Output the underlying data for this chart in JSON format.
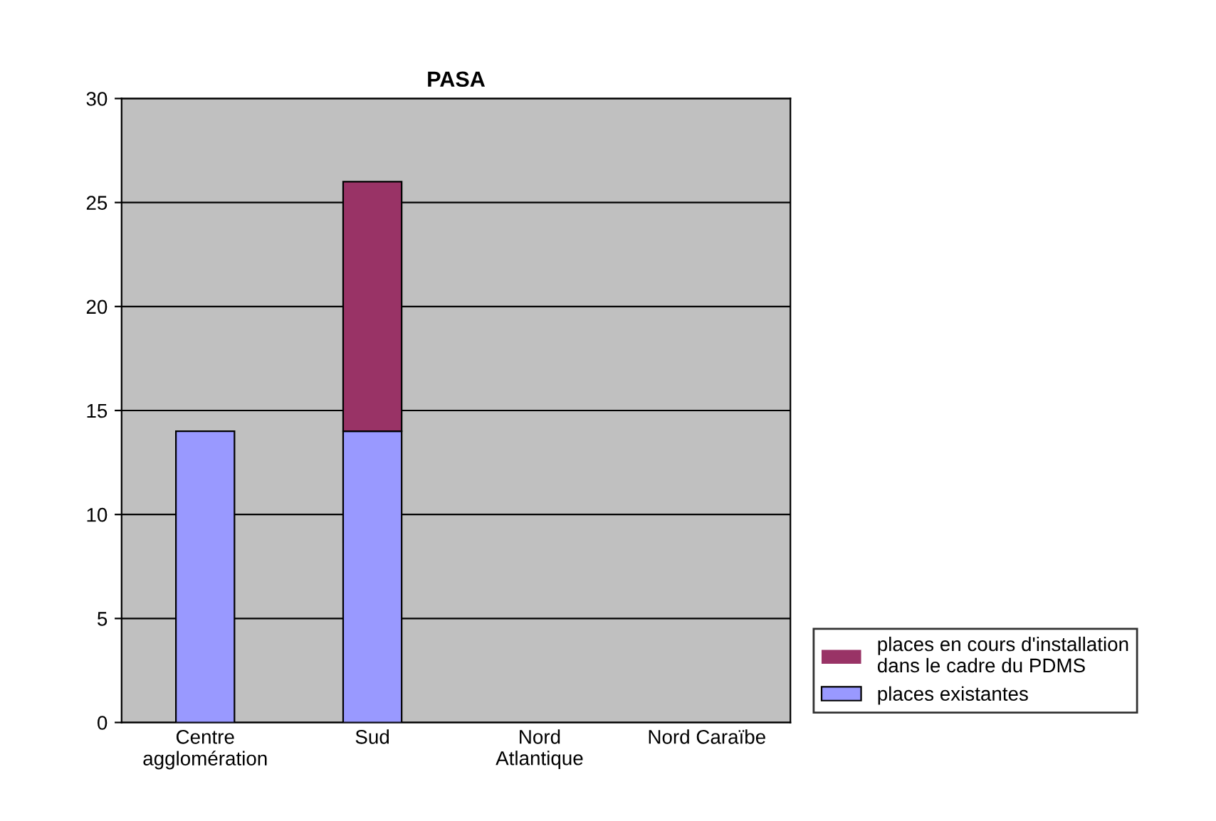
{
  "chart_data": {
    "type": "bar",
    "title": "PASA",
    "stacked": true,
    "categories": [
      "Centre\nagglomération",
      "Sud",
      "Nord\nAtlantique",
      "Nord Caraïbe"
    ],
    "series": [
      {
        "name": "places existantes",
        "color": "#9999ff",
        "values": [
          14,
          14,
          0,
          0
        ]
      },
      {
        "name": "places en cours d'installation\ndans le cadre du PDMS",
        "color": "#993366",
        "values": [
          0,
          12,
          0,
          0
        ]
      }
    ],
    "ylim": [
      0,
      30
    ],
    "yticks": [
      0,
      5,
      10,
      15,
      20,
      25,
      30
    ],
    "grid": "y",
    "legend": "bottom right"
  }
}
